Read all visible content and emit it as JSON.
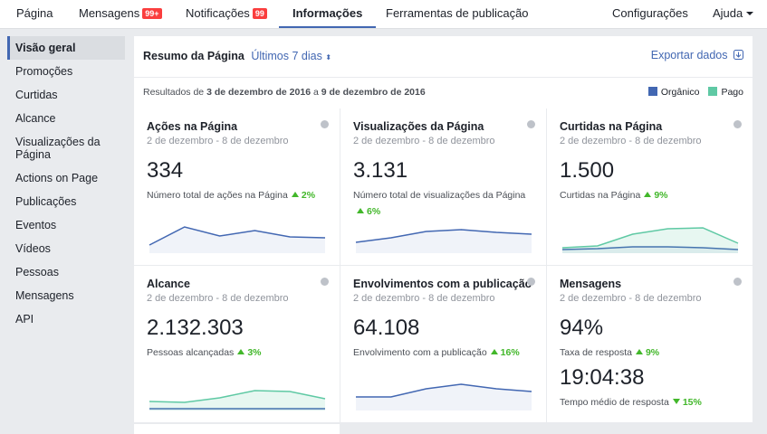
{
  "nav": {
    "tabs": [
      {
        "label": "Página"
      },
      {
        "label": "Mensagens",
        "badge": "99+"
      },
      {
        "label": "Notificações",
        "badge": "99"
      },
      {
        "label": "Informações",
        "active": true
      },
      {
        "label": "Ferramentas de publicação"
      }
    ],
    "right": [
      "Configurações",
      "Ajuda"
    ]
  },
  "sidebar": {
    "items": [
      "Visão geral",
      "Promoções",
      "Curtidas",
      "Alcance",
      "Visualizações da Página",
      "Actions on Page",
      "Publicações",
      "Eventos",
      "Vídeos",
      "Pessoas",
      "Mensagens",
      "API"
    ],
    "active": 0
  },
  "summary": {
    "title": "Resumo da Página",
    "period": "Últimos 7 dias",
    "export": "Exportar dados",
    "results": {
      "prefix": "Resultados de",
      "start": "3 de dezembro de 2016",
      "joiner": "a",
      "end": "9 de dezembro de 2016"
    },
    "legend": [
      {
        "name": "Orgânico",
        "color": "#4267b2"
      },
      {
        "name": "Pago",
        "color": "#5fc9a4"
      }
    ]
  },
  "cards": [
    {
      "title": "Ações na Página",
      "date": "2 de dezembro - 8 de dezembro",
      "metrics": [
        {
          "value": "334",
          "label": "Número total de ações na Página",
          "change": "2%",
          "direction": "up"
        }
      ],
      "sparkline": {
        "organic": [
          9,
          29,
          19,
          25,
          18,
          17
        ]
      }
    },
    {
      "title": "Visualizações da Página",
      "date": "2 de dezembro - 8 de dezembro",
      "metrics": [
        {
          "value": "3.131",
          "label": "Número total de visualizações da Página",
          "change": "6%",
          "direction": "up"
        }
      ],
      "sparkline": {
        "organic": [
          12,
          17,
          24,
          26,
          23,
          21
        ]
      }
    },
    {
      "title": "Curtidas na Página",
      "date": "2 de dezembro - 8 de dezembro",
      "metrics": [
        {
          "value": "1.500",
          "label": "Curtidas na Página",
          "change": "9%",
          "direction": "up"
        }
      ],
      "sparkline": {
        "organic": [
          4,
          5,
          7,
          7,
          6,
          4
        ],
        "paid": [
          6,
          8,
          21,
          27,
          28,
          11
        ]
      }
    },
    {
      "title": "Alcance",
      "date": "2 de dezembro - 8 de dezembro",
      "metrics": [
        {
          "value": "2.132.303",
          "label": "Pessoas alcançadas",
          "change": "3%",
          "direction": "up"
        }
      ],
      "sparkline": {
        "organic": [
          2,
          2,
          2,
          2,
          2,
          2
        ],
        "paid": [
          10,
          9,
          14,
          22,
          21,
          13
        ]
      }
    },
    {
      "title": "Envolvimentos com a publicação",
      "date": "2 de dezembro - 8 de dezembro",
      "metrics": [
        {
          "value": "64.108",
          "label": "Envolvimento com a publicação",
          "change": "16%",
          "direction": "up"
        }
      ],
      "sparkline": {
        "organic": [
          15,
          15,
          24,
          29,
          24,
          21
        ]
      }
    },
    {
      "title": "Mensagens",
      "date": "2 de dezembro - 8 de dezembro",
      "metrics": [
        {
          "value": "94%",
          "label": "Taxa de resposta",
          "change": "9%",
          "direction": "up"
        },
        {
          "value": "19:04:38",
          "label": "Tempo médio de resposta",
          "change": "15%",
          "direction": "down"
        }
      ]
    }
  ]
}
